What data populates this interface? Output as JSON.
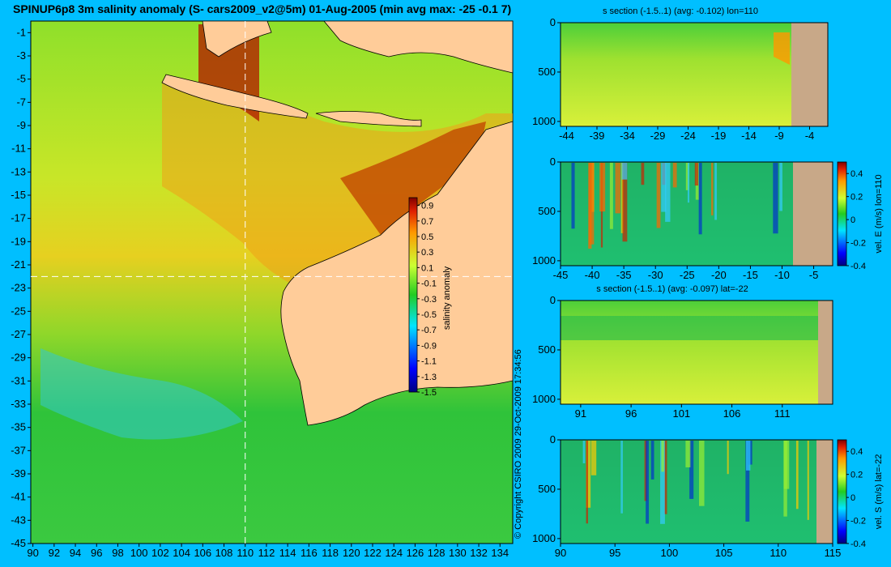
{
  "title": "SPINUP6p8 3m salinity anomaly (S- cars2009_v2@5m) 01-Aug-2005 (min avg max: -25 -0.1 7)",
  "copyright": "© Copyright CSIRO 2009  29-Oct-2009 17:34:56",
  "colors": {
    "background": "#00bfff",
    "land": "#ffcc99",
    "section_land": "#c8a888",
    "crosshair": "#ffffff"
  },
  "chart_data": [
    {
      "type": "heatmap",
      "name": "map",
      "title": "SPINUP6p8 3m salinity anomaly (S- cars2009_v2@5m) 01-Aug-2005 (min avg max: -25 -0.1 7)",
      "xlim": [
        90,
        135
      ],
      "ylim": [
        -45,
        0
      ],
      "x_ticks": [
        "90",
        "92",
        "94",
        "96",
        "98",
        "100",
        "102",
        "104",
        "106",
        "108",
        "110",
        "112",
        "114",
        "116",
        "118",
        "120",
        "122",
        "124",
        "126",
        "128",
        "130",
        "132",
        "134"
      ],
      "y_ticks": [
        "-1",
        "-3",
        "-5",
        "-7",
        "-9",
        "-11",
        "-13",
        "-15",
        "-17",
        "-19",
        "-21",
        "-23",
        "-25",
        "-27",
        "-29",
        "-31",
        "-33",
        "-35",
        "-37",
        "-39",
        "-41",
        "-43",
        "-45"
      ],
      "crosshair": {
        "lon": 110,
        "lat": -22
      },
      "colorbar": {
        "label": "salinity anomaly",
        "range": [
          -1.5,
          1.0
        ],
        "ticks": [
          "0.9",
          "0.7",
          "0.5",
          "0.3",
          "0.1",
          "-0.1",
          "-0.3",
          "-0.5",
          "-0.7",
          "-0.9",
          "-1.1",
          "-1.3",
          "-1.5"
        ]
      }
    },
    {
      "type": "heatmap",
      "name": "s-section-lon110",
      "title": "s section (-1.5..1) (avg: -0.102) lon=110",
      "xlim": [
        -45,
        0
      ],
      "ylim": [
        1050,
        0
      ],
      "x_ticks": [
        "-44",
        "-39",
        "-34",
        "-29",
        "-24",
        "-19",
        "-14",
        "-9",
        "-4"
      ],
      "y_ticks": [
        "0",
        "500",
        "1000"
      ]
    },
    {
      "type": "heatmap",
      "name": "velE-section-lon110",
      "title": "",
      "xlim": [
        -45,
        -2
      ],
      "ylim": [
        1050,
        0
      ],
      "x_ticks": [
        "-45",
        "-40",
        "-35",
        "-30",
        "-25",
        "-20",
        "-15",
        "-10",
        "-5"
      ],
      "y_ticks": [
        "0",
        "500",
        "1000"
      ],
      "colorbar": {
        "label": "vel. E (m/s) lon=110",
        "range": [
          -0.4,
          0.5
        ],
        "ticks": [
          "0.4",
          "0.2",
          "0",
          "-0.2",
          "-0.4"
        ]
      }
    },
    {
      "type": "heatmap",
      "name": "s-section-lat-22",
      "title": "s section (-1.5..1) (avg: -0.097) lat=-22",
      "xlim": [
        89,
        115
      ],
      "ylim": [
        1050,
        0
      ],
      "x_ticks": [
        "91",
        "96",
        "101",
        "106",
        "111"
      ],
      "y_ticks": [
        "0",
        "500",
        "1000"
      ]
    },
    {
      "type": "heatmap",
      "name": "velS-section-lat-22",
      "title": "",
      "xlim": [
        89,
        115
      ],
      "ylim": [
        1050,
        0
      ],
      "x_ticks": [
        "90",
        "95",
        "100",
        "105",
        "110",
        "115"
      ],
      "y_ticks": [
        "0",
        "500",
        "1000"
      ],
      "colorbar": {
        "label": "vel. S (m/s) lat=-22",
        "range": [
          -0.4,
          0.5
        ],
        "ticks": [
          "0.4",
          "0.2",
          "0",
          "-0.2",
          "-0.4"
        ]
      }
    }
  ]
}
